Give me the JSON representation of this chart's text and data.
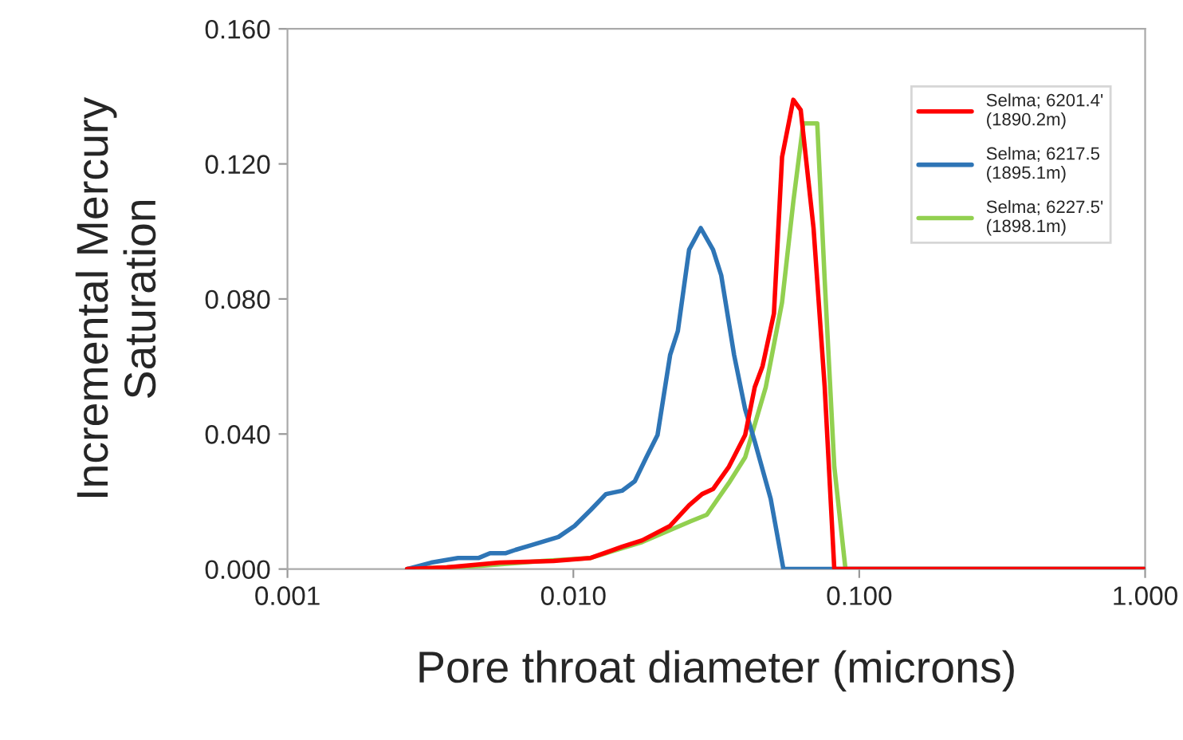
{
  "chart_data": {
    "type": "line",
    "xlabel": "Pore throat diameter (microns)",
    "ylabel": "Incremental Mercury\nSaturation",
    "log": "x",
    "xlim": [
      0.001,
      1.0
    ],
    "xticks": [
      {
        "value": 0.001,
        "label": "0.001"
      },
      {
        "value": 0.01,
        "label": "0.010"
      },
      {
        "value": 0.1,
        "label": "0.100"
      },
      {
        "value": 1.0,
        "label": "1.000"
      }
    ],
    "ylim": [
      0,
      0.16
    ],
    "yticks": [
      {
        "value": 0,
        "label": "0.000"
      },
      {
        "value": 0.04,
        "label": "0.040"
      },
      {
        "value": 0.08,
        "label": "0.080"
      },
      {
        "value": 0.12,
        "label": "0.120"
      },
      {
        "value": 0.16,
        "label": "0.160"
      }
    ],
    "grid": false,
    "legend": "top right",
    "marker": "none",
    "line_style": "solid",
    "series": [
      {
        "name": "Selma; 6201.4'\n(1890.2m)",
        "color": "#ff0000",
        "x": [
          0.00262,
          0.00361,
          0.00552,
          0.00853,
          0.0115,
          0.0148,
          0.0174,
          0.0218,
          0.0254,
          0.0282,
          0.0308,
          0.035,
          0.0399,
          0.0431,
          0.0459,
          0.0503,
          0.0537,
          0.0588,
          0.0624,
          0.0692,
          0.0757,
          0.0818,
          1.0
        ],
        "values": [
          0,
          0.0005,
          0.0019,
          0.0024,
          0.0033,
          0.0066,
          0.0085,
          0.0128,
          0.0189,
          0.0222,
          0.0237,
          0.0303,
          0.0397,
          0.0539,
          0.0601,
          0.0757,
          0.122,
          0.139,
          0.136,
          0.101,
          0.0539,
          0,
          0
        ]
      },
      {
        "name": "Selma; 6217.5\n(1895.1m)",
        "color": "#2e75b6",
        "x": [
          0.00262,
          0.00318,
          0.00395,
          0.00467,
          0.00511,
          0.00581,
          0.00628,
          0.00713,
          0.00887,
          0.0101,
          0.0115,
          0.013,
          0.0148,
          0.0164,
          0.018,
          0.0197,
          0.0218,
          0.0232,
          0.0254,
          0.0279,
          0.0308,
          0.0329,
          0.0365,
          0.0399,
          0.0431,
          0.049,
          0.0543,
          1.0
        ],
        "values": [
          0,
          0.0019,
          0.0033,
          0.0033,
          0.0047,
          0.0047,
          0.0057,
          0.0071,
          0.0095,
          0.0128,
          0.0175,
          0.0222,
          0.0232,
          0.026,
          0.0331,
          0.0397,
          0.0634,
          0.0705,
          0.0946,
          0.101,
          0.0946,
          0.087,
          0.0634,
          0.0473,
          0.0378,
          0.0208,
          0,
          0
        ]
      },
      {
        "name": "Selma; 6227.5'\n(1898.1m)",
        "color": "#92d050",
        "x": [
          0.00262,
          0.00467,
          0.0078,
          0.0115,
          0.0174,
          0.0258,
          0.0293,
          0.035,
          0.0399,
          0.0471,
          0.0537,
          0.0588,
          0.0637,
          0.0713,
          0.0757,
          0.0818,
          0.0895,
          1.0
        ],
        "values": [
          0,
          0.0009,
          0.0024,
          0.0033,
          0.008,
          0.0142,
          0.0161,
          0.0255,
          0.0331,
          0.0539,
          0.079,
          0.1088,
          0.132,
          0.132,
          0.0856,
          0.0303,
          0,
          0
        ]
      }
    ]
  }
}
